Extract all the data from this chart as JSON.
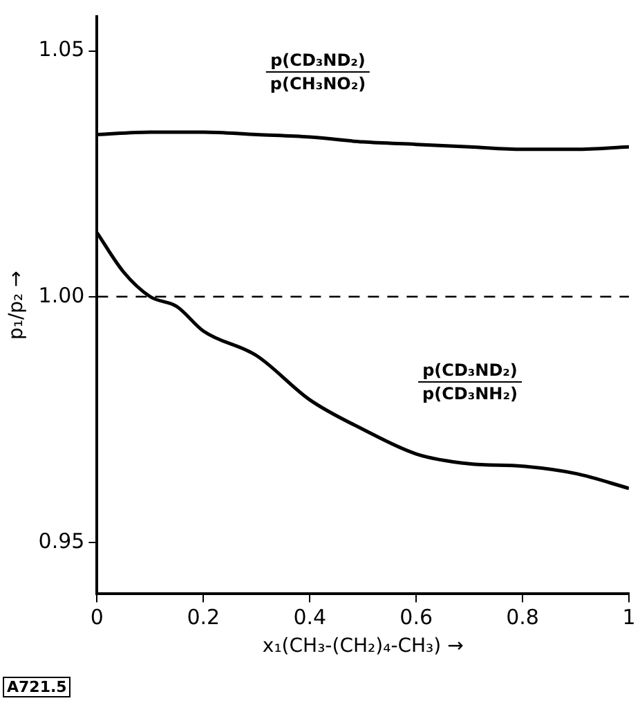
{
  "chart_data": {
    "type": "line",
    "xlabel": "x₁(CH₃-(CH₂)₄-CH₃) →",
    "ylabel": "p₁/p₂ →",
    "xlim": [
      0,
      1
    ],
    "xticks": [
      0,
      0.2,
      0.4,
      0.6,
      0.8,
      1
    ],
    "ylim": [
      0.9395,
      1.057
    ],
    "yticks": [
      0.95,
      {
        "value": 1,
        "label": "1.00"
      },
      1.05
    ],
    "grid": false,
    "legend": false,
    "marker": "none",
    "line_style": "solid",
    "series": [
      {
        "color": "#000000",
        "x": [
          0,
          0.1,
          0.2,
          0.3,
          0.4,
          0.5,
          0.6,
          0.7,
          0.8,
          0.9,
          1
        ],
        "values": [
          1.033,
          1.0335,
          1.0335,
          1.033,
          1.0325,
          1.0315,
          1.031,
          1.0305,
          1.03,
          1.03,
          1.0305
        ]
      },
      {
        "color": "#000000",
        "x": [
          0,
          0.05,
          0.1,
          0.15,
          0.2,
          0.3,
          0.4,
          0.5,
          0.6,
          0.7,
          0.8,
          0.9,
          1
        ],
        "values": [
          1.013,
          1.005,
          1.0,
          0.998,
          0.993,
          0.988,
          0.979,
          0.973,
          0.968,
          0.966,
          0.9655,
          0.964,
          0.961
        ]
      }
    ],
    "ref_lines": [
      {
        "axis": "y",
        "value": 1,
        "line_style": "dashed",
        "color": "#000000"
      }
    ],
    "annotations": [
      "p(CD₃ND₂)",
      "p(CH₃NO₂)",
      "p(CD₃ND₂)",
      "p(CD₃NH₂)",
      "A721.5"
    ]
  }
}
